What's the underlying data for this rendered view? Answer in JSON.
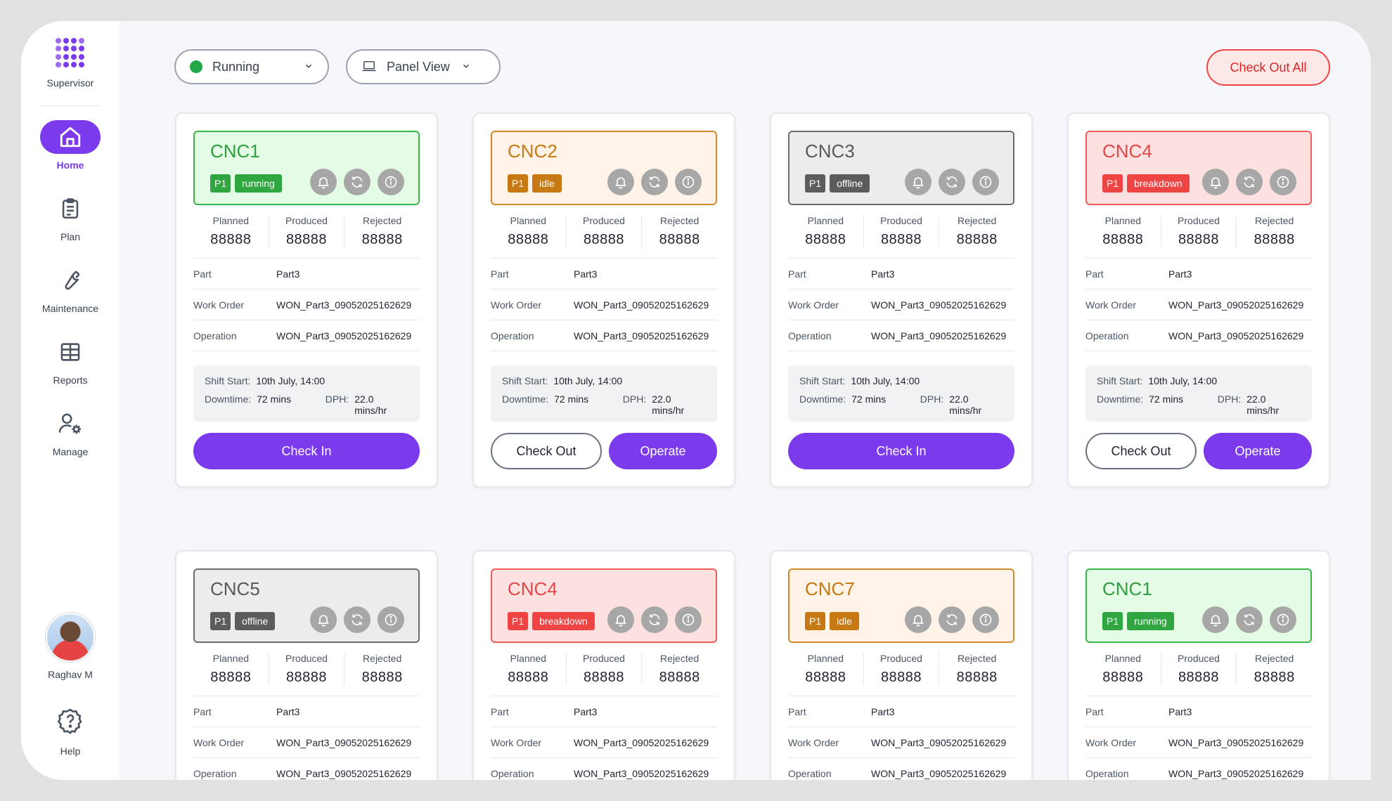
{
  "sidebar": {
    "brand": "Supervisor",
    "items": [
      {
        "label": "Home",
        "icon": "home-icon",
        "active": true
      },
      {
        "label": "Plan",
        "icon": "clipboard-icon"
      },
      {
        "label": "Maintenance",
        "icon": "wrench-icon"
      },
      {
        "label": "Reports",
        "icon": "table-icon"
      },
      {
        "label": "Manage",
        "icon": "user-gear-icon"
      }
    ],
    "user_name": "Raghav M",
    "help_label": "Help"
  },
  "toolbar": {
    "status_filter": "Running",
    "view_mode": "Panel View",
    "checkout_all_label": "Check Out All"
  },
  "labels": {
    "planned": "Planned",
    "produced": "Produced",
    "rejected": "Rejected",
    "part": "Part",
    "work_order": "Work Order",
    "operation": "Operation",
    "shift_start": "Shift Start:",
    "downtime": "Downtime:",
    "dph": "DPH:"
  },
  "colors": {
    "accent": "#7c3aed",
    "running": "#2fa63f",
    "idle": "#c77a14",
    "offline": "#5c5c5c",
    "breakdown": "#ef4444"
  },
  "machines": [
    {
      "name": "CNC1",
      "priority": "P1",
      "status": "running",
      "planned": "88888",
      "produced": "88888",
      "rejected": "88888",
      "part": "Part3",
      "work_order": "WON_Part3_09052025162629",
      "operation": "WON_Part3_09052025162629",
      "shift_start": "10th July, 14:00",
      "downtime": "72 mins",
      "dph": "22.0 mins/hr",
      "buttons": [
        "Check In"
      ]
    },
    {
      "name": "CNC2",
      "priority": "P1",
      "status": "idle",
      "planned": "88888",
      "produced": "88888",
      "rejected": "88888",
      "part": "Part3",
      "work_order": "WON_Part3_09052025162629",
      "operation": "WON_Part3_09052025162629",
      "shift_start": "10th July, 14:00",
      "downtime": "72 mins",
      "dph": "22.0 mins/hr",
      "buttons": [
        "Check Out",
        "Operate"
      ]
    },
    {
      "name": "CNC3",
      "priority": "P1",
      "status": "offline",
      "planned": "88888",
      "produced": "88888",
      "rejected": "88888",
      "part": "Part3",
      "work_order": "WON_Part3_09052025162629",
      "operation": "WON_Part3_09052025162629",
      "shift_start": "10th July, 14:00",
      "downtime": "72 mins",
      "dph": "22.0 mins/hr",
      "buttons": [
        "Check In"
      ]
    },
    {
      "name": "CNC4",
      "priority": "P1",
      "status": "breakdown",
      "planned": "88888",
      "produced": "88888",
      "rejected": "88888",
      "part": "Part3",
      "work_order": "WON_Part3_09052025162629",
      "operation": "WON_Part3_09052025162629",
      "shift_start": "10th July, 14:00",
      "downtime": "72 mins",
      "dph": "22.0 mins/hr",
      "buttons": [
        "Check Out",
        "Operate"
      ]
    },
    {
      "name": "CNC5",
      "priority": "P1",
      "status": "offline",
      "planned": "88888",
      "produced": "88888",
      "rejected": "88888",
      "part": "Part3",
      "work_order": "WON_Part3_09052025162629",
      "operation": "WON_Part3_09052025162629"
    },
    {
      "name": "CNC4",
      "priority": "P1",
      "status": "breakdown",
      "planned": "88888",
      "produced": "88888",
      "rejected": "88888",
      "part": "Part3",
      "work_order": "WON_Part3_09052025162629",
      "operation": "WON_Part3_09052025162629"
    },
    {
      "name": "CNC7",
      "priority": "P1",
      "status": "idle",
      "planned": "88888",
      "produced": "88888",
      "rejected": "88888",
      "part": "Part3",
      "work_order": "WON_Part3_09052025162629",
      "operation": "WON_Part3_09052025162629"
    },
    {
      "name": "CNC1",
      "priority": "P1",
      "status": "running",
      "planned": "88888",
      "produced": "88888",
      "rejected": "88888",
      "part": "Part3",
      "work_order": "WON_Part3_09052025162629",
      "operation": "WON_Part3_09052025162629"
    }
  ]
}
